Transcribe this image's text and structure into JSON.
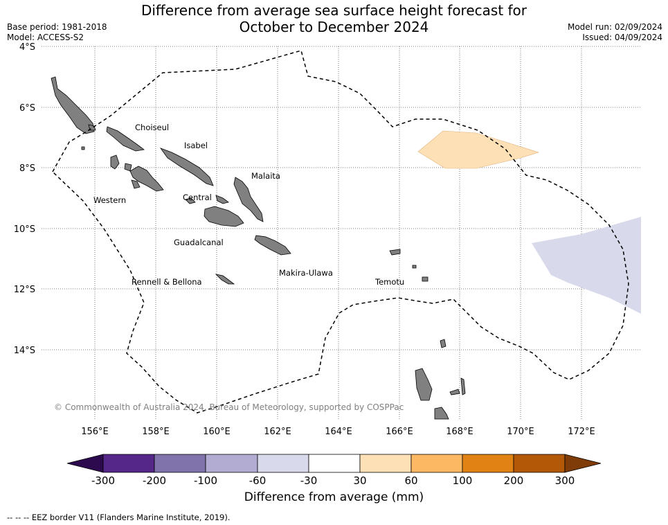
{
  "title_line1": "Difference from average sea surface height forecast for",
  "title_line2": "October to December 2024",
  "base_period": "Base period: 1981-2018",
  "model": "Model: ACCESS-S2",
  "model_run": "Model run: 02/09/2024",
  "issued": "Issued: 04/09/2024",
  "lat_labels": [
    "4°S",
    "6°S",
    "8°S",
    "10°S",
    "12°S",
    "14°S"
  ],
  "lon_labels": [
    "156°E",
    "158°E",
    "160°E",
    "162°E",
    "164°E",
    "166°E",
    "168°E",
    "170°E",
    "172°E"
  ],
  "provinces": {
    "choiseul": "Choiseul",
    "isabel": "Isabel",
    "malaita": "Malaita",
    "western": "Western",
    "central": "Central",
    "guadalcanal": "Guadalcanal",
    "makira": "Makira-Ulawa",
    "rennell": "Rennell & Bellona",
    "temotu": "Temotu"
  },
  "copyright": "© Commonwealth of Australia 2024, Bureau of Meteorology, supported by COSPPac",
  "colorbar": {
    "ticks": [
      "-300",
      "-200",
      "-100",
      "-60",
      "-30",
      "30",
      "60",
      "100",
      "200",
      "300"
    ],
    "colors": [
      "#2d0a4e",
      "#542788",
      "#8073ac",
      "#b2abd2",
      "#d8daeb",
      "#ffffff",
      "#fee0b6",
      "#fdb863",
      "#e08214",
      "#b35806",
      "#7f3b08"
    ],
    "label": "Difference from average (mm)"
  },
  "anomaly_colors": {
    "positive": "#fee0b6",
    "negative": "#d8daeb",
    "land": "#808080"
  },
  "footnote": "--  --  -- EEZ border V11 (Flanders Marine Institute, 2019)."
}
